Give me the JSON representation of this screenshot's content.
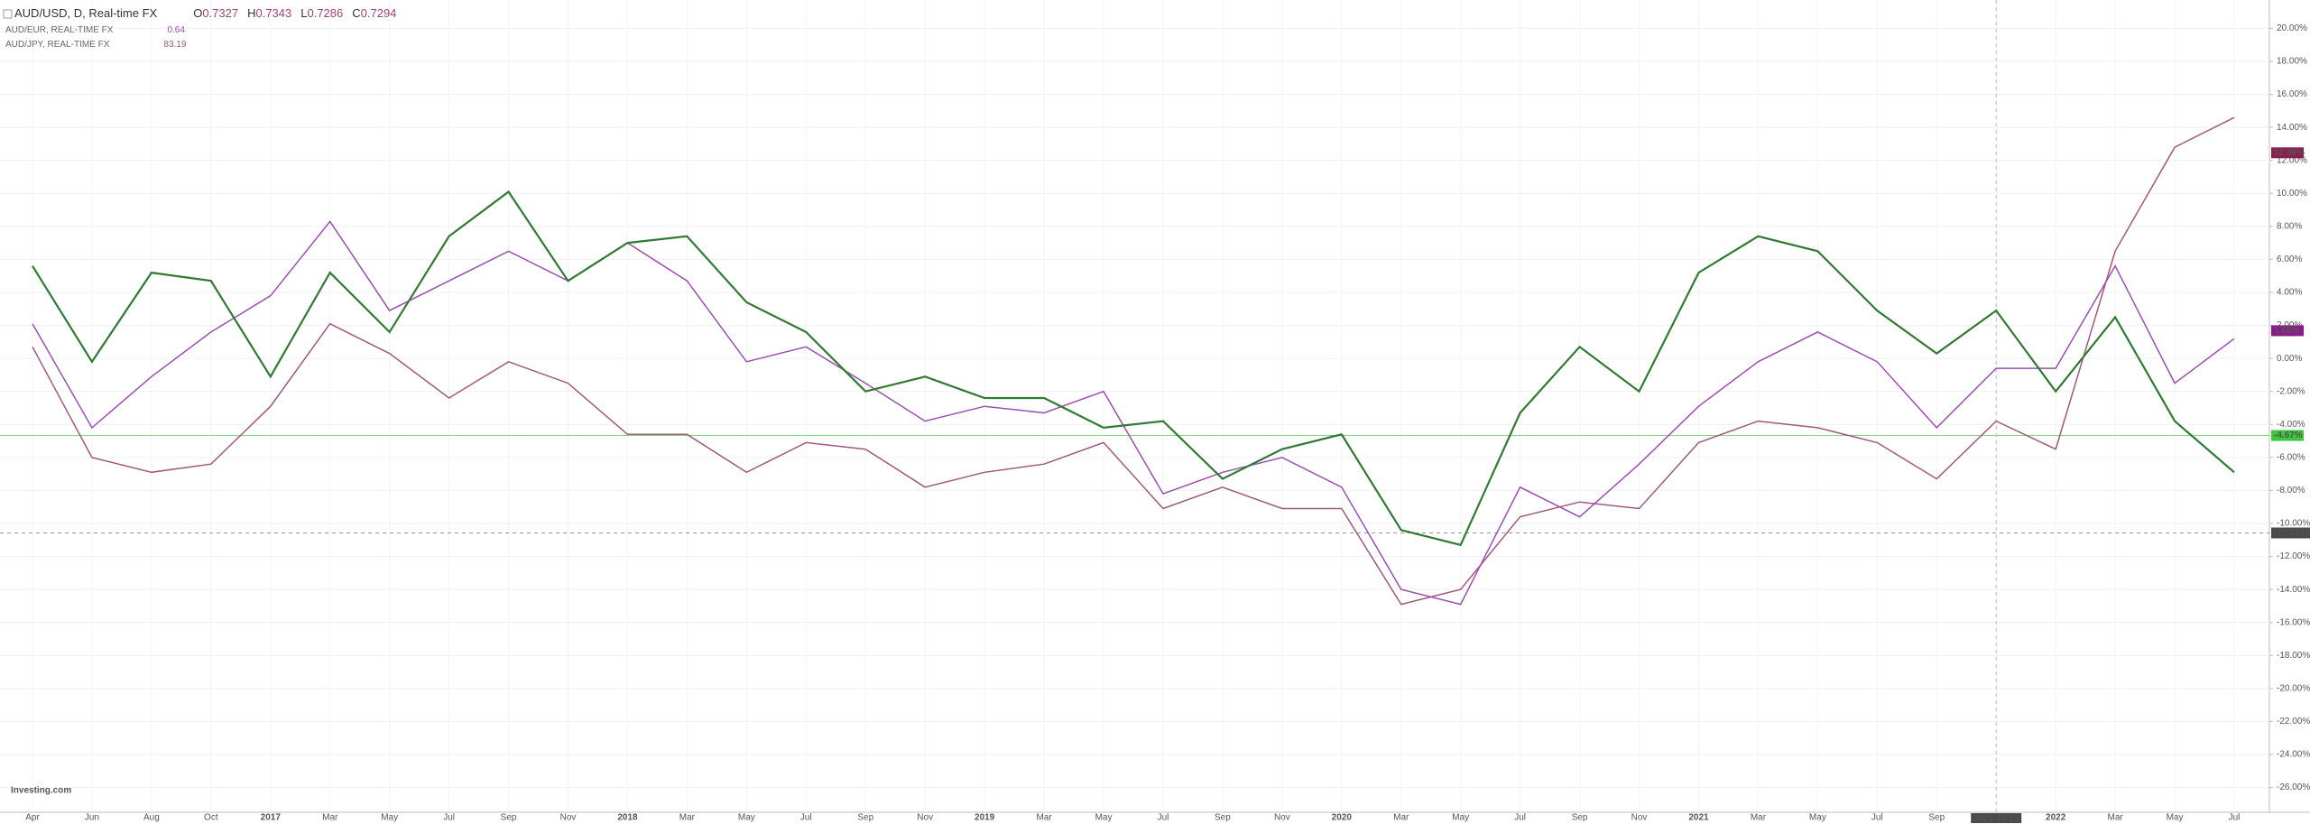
{
  "chart_data": {
    "type": "line",
    "brand": "Investing.com",
    "ohlc": [
      {
        "label": "O",
        "value": 0.7327
      },
      {
        "label": "H",
        "value": 0.7343
      },
      {
        "label": "L",
        "value": 0.7286
      },
      {
        "label": "C",
        "value": 0.7294
      }
    ],
    "categories": [
      "Apr",
      "Jun",
      "Aug",
      "Oct",
      "2017",
      "Mar",
      "May",
      "Jul",
      "Sep",
      "Nov",
      "2018",
      "Mar",
      "May",
      "Jul",
      "Sep",
      "Nov",
      "2019",
      "Mar",
      "May",
      "Jul",
      "Sep",
      "Nov",
      "2020",
      "Mar",
      "May",
      "Jul",
      "Sep",
      "Nov",
      "2021",
      "Mar",
      "May",
      "Jul",
      "Sep",
      null,
      "2022",
      "Mar",
      "May",
      "Jul"
    ],
    "series": [
      {
        "name": "AUD/USD, D, Real-time FX",
        "color": "#2f7a34",
        "last_change": {
          "value": -4.67,
          "label": "-4.67%"
        },
        "values": [
          5.6,
          -0.2,
          5.2,
          4.7,
          -1.1,
          5.2,
          1.6,
          7.4,
          10.1,
          4.7,
          7.0,
          7.4,
          3.4,
          1.6,
          -2.0,
          -1.1,
          -2.4,
          -2.4,
          -4.2,
          -3.8,
          -7.3,
          -5.5,
          -4.6,
          -10.4,
          -11.3,
          -3.3,
          0.7,
          -2.0,
          5.2,
          7.4,
          6.5,
          2.9,
          0.3,
          2.9,
          -2.0,
          2.5,
          -3.8,
          -6.9
        ]
      },
      {
        "name": "AUD/EUR, REAL-TIME FX",
        "color": "#9b4fb0",
        "last_price": 0.64,
        "last_change": {
          "value": 1.68,
          "label": "1.68%"
        },
        "values": [
          2.1,
          -4.2,
          -1.1,
          1.6,
          3.8,
          8.3,
          2.9,
          4.7,
          6.5,
          4.7,
          7.0,
          4.7,
          -0.2,
          0.7,
          -1.5,
          -3.8,
          -2.9,
          -3.3,
          -2.0,
          -8.2,
          -6.9,
          -6.0,
          -7.8,
          -14.0,
          -14.9,
          -7.8,
          -9.6,
          -6.4,
          -2.9,
          -0.2,
          1.6,
          -0.2,
          -4.2,
          -0.6,
          -0.6,
          5.6,
          -1.5,
          1.2
        ]
      },
      {
        "name": "AUD/JPY, REAL-TIME FX",
        "color": "#a0587c",
        "last_price": 83.19,
        "last_change": {
          "value": 12.46,
          "label": "12.46%"
        },
        "values": [
          0.7,
          -6.0,
          -6.9,
          -6.4,
          -2.9,
          2.1,
          0.3,
          -2.4,
          -0.2,
          -1.5,
          -4.6,
          -4.6,
          -6.9,
          -5.1,
          -5.5,
          -7.8,
          -6.9,
          -6.4,
          -5.1,
          -9.1,
          -7.8,
          -9.1,
          -9.1,
          -14.9,
          -14.0,
          -9.6,
          -8.7,
          -9.1,
          -5.1,
          -3.8,
          -4.2,
          -5.1,
          -7.3,
          -3.8,
          -5.5,
          6.5,
          12.8,
          14.6
        ]
      }
    ],
    "crosshair": {
      "x_label": "2021-11-15",
      "y": {
        "value": -10.5739,
        "label": "-10.5739"
      }
    },
    "ylim": [
      -27.5,
      21.5
    ],
    "yticks": [
      {
        "value": 20,
        "label": "20.00%"
      },
      {
        "value": 18,
        "label": "18.00%"
      },
      {
        "value": 16,
        "label": "16.00%"
      },
      {
        "value": 14,
        "label": "14.00%"
      },
      {
        "value": 12,
        "label": "12.00%"
      },
      {
        "value": 10,
        "label": "10.00%"
      },
      {
        "value": 8,
        "label": "8.00%"
      },
      {
        "value": 6,
        "label": "6.00%"
      },
      {
        "value": 4,
        "label": "4.00%"
      },
      {
        "value": 2,
        "label": "2.00%"
      },
      {
        "value": 0,
        "label": "0.00%"
      },
      {
        "value": -2,
        "label": "-2.00%"
      },
      {
        "value": -4,
        "label": "-4.00%"
      },
      {
        "value": -6,
        "label": "-6.00%"
      },
      {
        "value": -8,
        "label": "-8.00%"
      },
      {
        "value": -10,
        "label": "-10.00%"
      },
      {
        "value": -12,
        "label": "-12.00%"
      },
      {
        "value": -14,
        "label": "-14.00%"
      },
      {
        "value": -16,
        "label": "-16.00%"
      },
      {
        "value": -18,
        "label": "-18.00%"
      },
      {
        "value": -20,
        "label": "-20.00%"
      },
      {
        "value": -22,
        "label": "-22.00%"
      },
      {
        "value": -24,
        "label": "-24.00%"
      },
      {
        "value": -26,
        "label": "-26.00%"
      }
    ],
    "grid": true
  }
}
